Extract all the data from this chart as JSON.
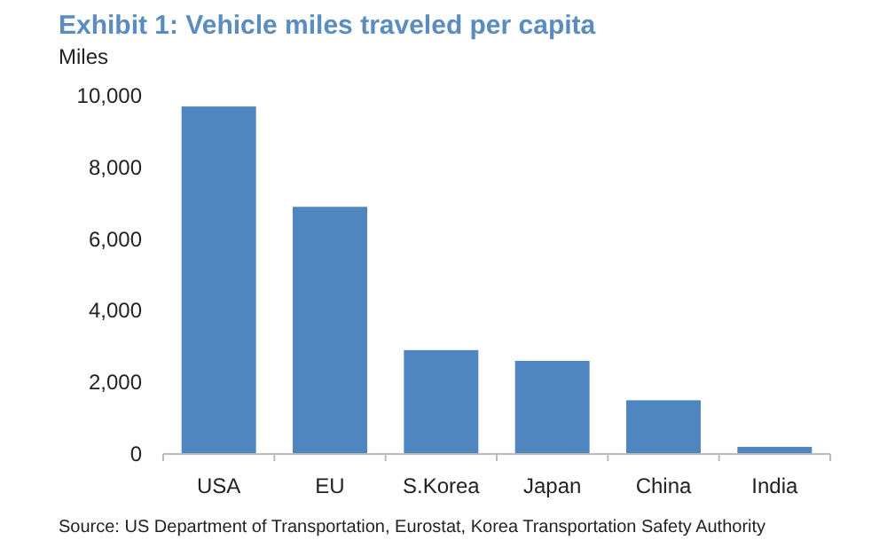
{
  "chart_data": {
    "type": "bar",
    "title": "Exhibit 1: Vehicle miles traveled per capita",
    "ylabel": "Miles",
    "categories": [
      "USA",
      "EU",
      "S.Korea",
      "Japan",
      "China",
      "India"
    ],
    "values": [
      9700,
      6900,
      2900,
      2600,
      1500,
      200
    ],
    "color": "#4f86c0",
    "ylim": [
      0,
      10000
    ],
    "yticks": [
      {
        "value": 0,
        "label": "0"
      },
      {
        "value": 2000,
        "label": "2,000"
      },
      {
        "value": 4000,
        "label": "4,000"
      },
      {
        "value": 6000,
        "label": "6,000"
      },
      {
        "value": 8000,
        "label": "8,000"
      },
      {
        "value": 10000,
        "label": "10,000"
      }
    ],
    "grid": false,
    "annotations": [
      "Source: US Department of Transportation, Eurostat, Korea Transportation Safety Authority"
    ]
  }
}
